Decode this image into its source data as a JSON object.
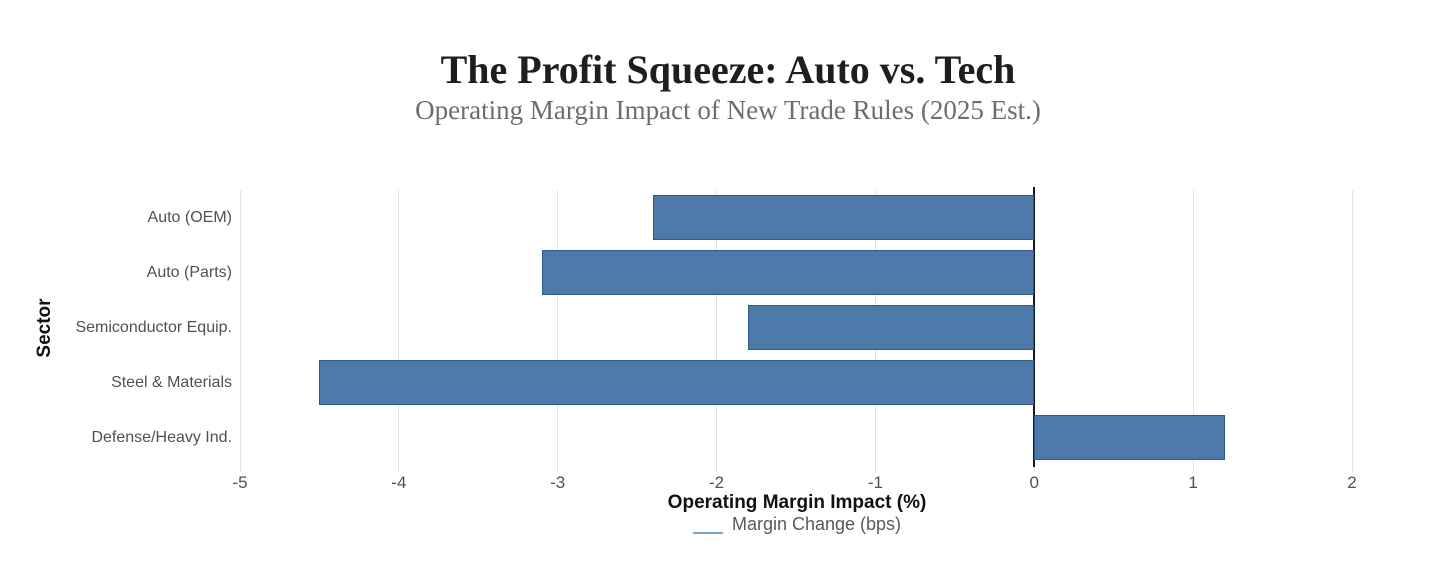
{
  "header": {
    "title": "The Profit Squeeze: Auto vs. Tech",
    "subtitle": "Operating Margin Impact of New Trade Rules (2025 Est.)"
  },
  "chart_data": {
    "type": "bar",
    "orientation": "horizontal",
    "title": "The Profit Squeeze: Auto vs. Tech",
    "subtitle": "Operating Margin Impact of New Trade Rules (2025 Est.)",
    "xlabel": "Operating Margin Impact (%)",
    "ylabel": "Sector",
    "categories": [
      "Auto (OEM)",
      "Auto (Parts)",
      "Semiconductor Equip.",
      "Steel & Materials",
      "Defense/Heavy Ind."
    ],
    "values": [
      -2.4,
      -3.1,
      -1.8,
      -4.5,
      1.2
    ],
    "series_name": "Margin Change (bps)",
    "xlim": [
      -5,
      2
    ],
    "xticks": [
      -5,
      -4,
      -3,
      -2,
      -1,
      0,
      1,
      2
    ],
    "grid": true,
    "zero_line": true,
    "legend_position": "bottom",
    "colors": {
      "bar_fill": "#4d79a8",
      "bar_border": "#2d5b8e",
      "grid_line": "#e4e4e4",
      "zero_line": "#16191d",
      "axis_text": "#4c5159",
      "title_text": "#1e1e1e",
      "subtitle_text": "#6d6d6d"
    }
  }
}
